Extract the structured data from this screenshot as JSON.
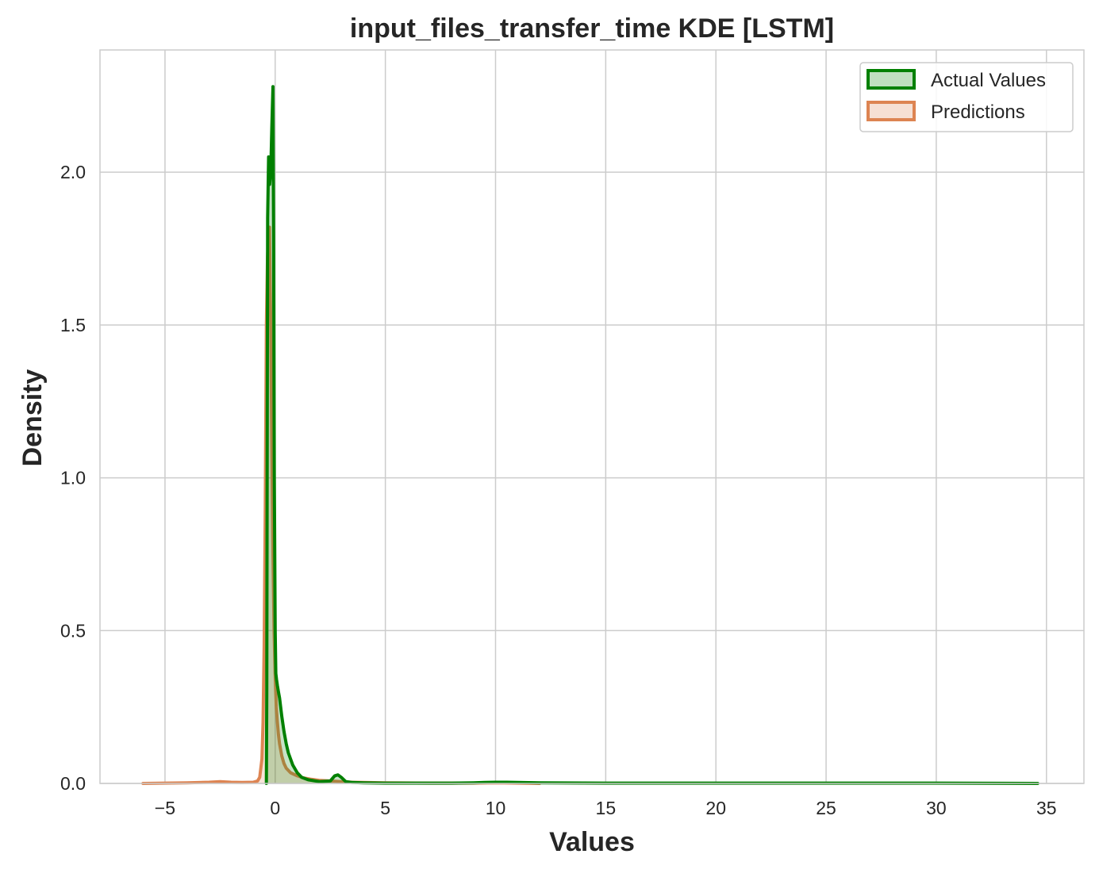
{
  "chart_data": {
    "type": "area",
    "title": "input_files_transfer_time KDE [LSTM]",
    "xlabel": "Values",
    "ylabel": "Density",
    "xlim": [
      -7.95,
      36.7
    ],
    "ylim": [
      0,
      2.4
    ],
    "xticks": [
      -5,
      0,
      5,
      10,
      15,
      20,
      25,
      30,
      35
    ],
    "xtick_labels": [
      "−5",
      "0",
      "5",
      "10",
      "15",
      "20",
      "25",
      "30",
      "35"
    ],
    "yticks": [
      0.0,
      0.5,
      1.0,
      1.5,
      2.0
    ],
    "ytick_labels": [
      "0.0",
      "0.5",
      "1.0",
      "1.5",
      "2.0"
    ],
    "grid": true,
    "legend_position": "top-right",
    "series": [
      {
        "name": "Actual Values",
        "color": "#008000",
        "x": [
          -0.4,
          -0.38,
          -0.36,
          -0.34,
          -0.3,
          -0.25,
          -0.2,
          -0.15,
          -0.1,
          -0.07,
          -0.04,
          0.0,
          0.03,
          0.06,
          0.1,
          0.15,
          0.2,
          0.3,
          0.4,
          0.5,
          0.6,
          0.8,
          1.0,
          1.2,
          1.5,
          2.0,
          2.5,
          2.7,
          2.85,
          3.0,
          3.2,
          3.5,
          4.0,
          5.0,
          6.0,
          7.0,
          8.0,
          9.0,
          9.5,
          10.0,
          10.5,
          11.0,
          12.0,
          15.0,
          20.0,
          25.0,
          30.0,
          34.6
        ],
        "y": [
          0.0,
          0.3,
          1.2,
          1.85,
          2.05,
          1.96,
          2.0,
          2.15,
          2.28,
          1.8,
          1.0,
          0.5,
          0.36,
          0.34,
          0.32,
          0.3,
          0.28,
          0.22,
          0.17,
          0.13,
          0.1,
          0.06,
          0.035,
          0.02,
          0.012,
          0.006,
          0.008,
          0.025,
          0.028,
          0.02,
          0.006,
          0.003,
          0.002,
          0.001,
          0.001,
          0.001,
          0.001,
          0.002,
          0.003,
          0.004,
          0.004,
          0.003,
          0.002,
          0.001,
          0.001,
          0.001,
          0.001,
          0.0
        ]
      },
      {
        "name": "Predictions",
        "color": "#dd8452",
        "x": [
          -6.0,
          -4.0,
          -3.0,
          -2.5,
          -2.0,
          -1.5,
          -1.0,
          -0.8,
          -0.7,
          -0.6,
          -0.55,
          -0.5,
          -0.45,
          -0.4,
          -0.35,
          -0.3,
          -0.26,
          -0.2,
          -0.15,
          -0.1,
          -0.05,
          0.0,
          0.05,
          0.1,
          0.15,
          0.2,
          0.3,
          0.4,
          0.5,
          0.7,
          1.0,
          1.3,
          1.6,
          2.0,
          2.5,
          3.0,
          3.5,
          4.0,
          5.0,
          7.0,
          9.0,
          10.0,
          11.0,
          12.0
        ],
        "y": [
          0.0,
          0.002,
          0.004,
          0.006,
          0.004,
          0.003,
          0.004,
          0.008,
          0.02,
          0.08,
          0.2,
          0.45,
          0.9,
          1.5,
          1.72,
          1.8,
          1.82,
          1.5,
          1.1,
          0.75,
          0.5,
          0.35,
          0.25,
          0.2,
          0.16,
          0.13,
          0.09,
          0.065,
          0.05,
          0.035,
          0.025,
          0.018,
          0.014,
          0.01,
          0.008,
          0.006,
          0.004,
          0.003,
          0.002,
          0.001,
          0.001,
          0.002,
          0.001,
          0.0
        ]
      }
    ]
  }
}
